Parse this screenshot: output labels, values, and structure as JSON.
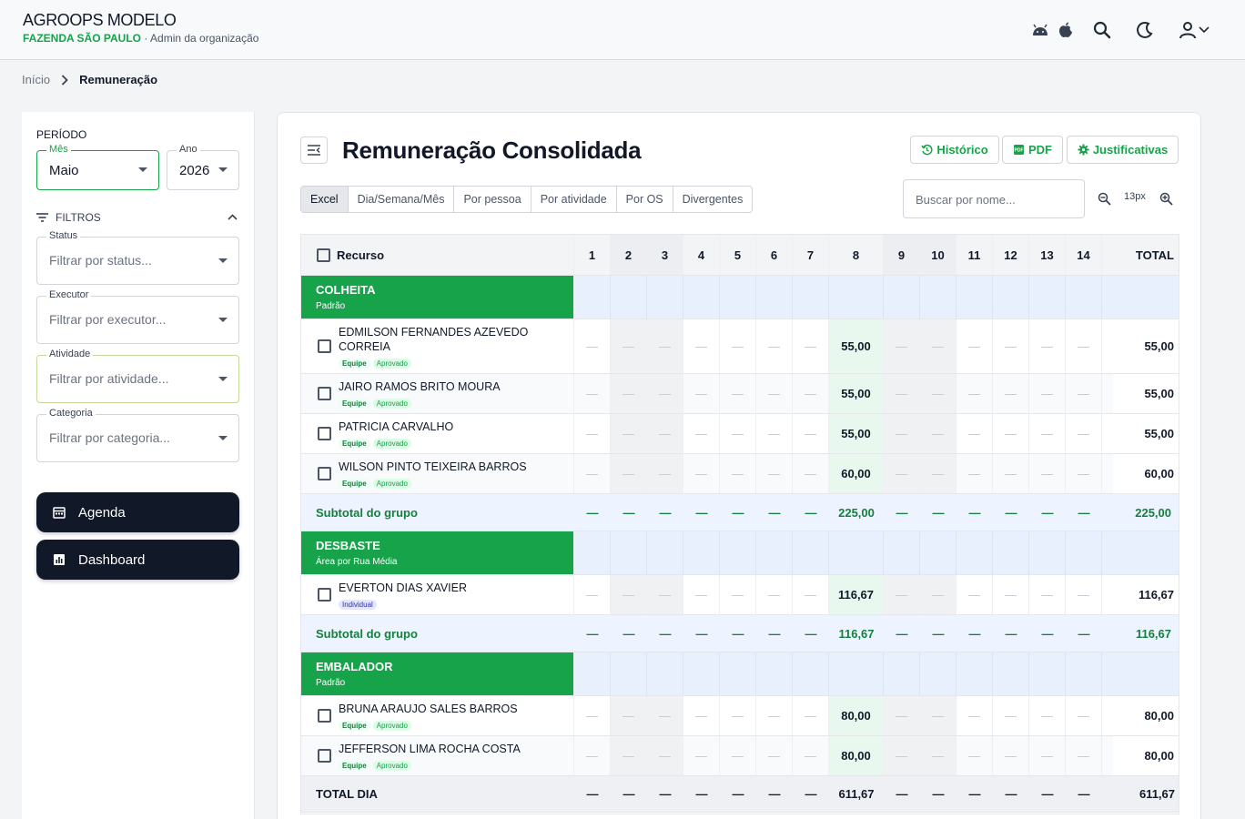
{
  "header": {
    "app_title": "AGROOPS MODELO",
    "farm": "FAZENDA SÃO PAULO",
    "separator": "·",
    "role": "Admin da organização"
  },
  "breadcrumb": {
    "home": "Início",
    "current": "Remuneração"
  },
  "sidebar": {
    "periodo_label": "PERÍODO",
    "mes_label": "Mês",
    "mes_value": "Maio",
    "ano_label": "Ano",
    "ano_value": "2026",
    "filtros_label": "FILTROS",
    "filters": [
      {
        "label": "Status",
        "placeholder": "Filtrar por status..."
      },
      {
        "label": "Executor",
        "placeholder": "Filtrar por executor..."
      },
      {
        "label": "Atividade",
        "placeholder": "Filtrar por atividade..."
      },
      {
        "label": "Categoria",
        "placeholder": "Filtrar por categoria..."
      }
    ],
    "nav": [
      {
        "label": "Agenda"
      },
      {
        "label": "Dashboard"
      }
    ]
  },
  "main": {
    "title": "Remuneração Consolidada",
    "buttons": {
      "historico": "Histórico",
      "pdf": "PDF",
      "justificativas": "Justificativas"
    },
    "tabs": [
      "Excel",
      "Dia/Semana/Mês",
      "Por pessoa",
      "Por atividade",
      "Por OS",
      "Divergentes"
    ],
    "search_placeholder": "Buscar por nome...",
    "zoom_level": "13px"
  },
  "table": {
    "resource_header": "Recurso",
    "total_header": "TOTAL",
    "days": [
      "1",
      "2",
      "3",
      "4",
      "5",
      "6",
      "7",
      "8",
      "9",
      "10",
      "11",
      "12",
      "13",
      "14"
    ],
    "empty": "—",
    "badge_team": "Equipe",
    "badge_approved": "Aprovado",
    "badge_individual": "Individual",
    "subtotal_label": "Subtotal do grupo",
    "groups": [
      {
        "name": "COLHEITA",
        "sub": "Padrão",
        "rows": [
          {
            "name": "EDMILSON FERNANDES AZEVEDO CORREIA",
            "day8": "55,00",
            "total": "55,00"
          },
          {
            "name": "JAIRO RAMOS BRITO MOURA",
            "day8": "55,00",
            "total": "55,00"
          },
          {
            "name": "PATRICIA CARVALHO",
            "day8": "55,00",
            "total": "55,00"
          },
          {
            "name": "WILSON PINTO TEIXEIRA BARROS",
            "day8": "60,00",
            "total": "60,00"
          }
        ],
        "subtotal_day8": "225,00",
        "subtotal_total": "225,00"
      },
      {
        "name": "DESBASTE",
        "sub": "Área por Rua Média",
        "rows": [
          {
            "name": "EVERTON DIAS XAVIER",
            "day8": "116,67",
            "total": "116,67"
          }
        ],
        "subtotal_day8": "116,67",
        "subtotal_total": "116,67"
      },
      {
        "name": "EMBALADOR",
        "sub": "Padrão",
        "rows": [
          {
            "name": "BRUNA ARAUJO SALES BARROS",
            "day8": "80,00",
            "total": "80,00"
          },
          {
            "name": "JEFFERSON LIMA ROCHA COSTA",
            "day8": "80,00",
            "total": "80,00"
          }
        ]
      }
    ],
    "total_dia_label": "TOTAL DIA",
    "total_dia_day8": "611,67",
    "total_dia_total": "611,67",
    "colors": {
      "group_green": "#16a34a",
      "light_blue": "#e8f0fe",
      "day8_green": "#e8f8ee"
    }
  }
}
